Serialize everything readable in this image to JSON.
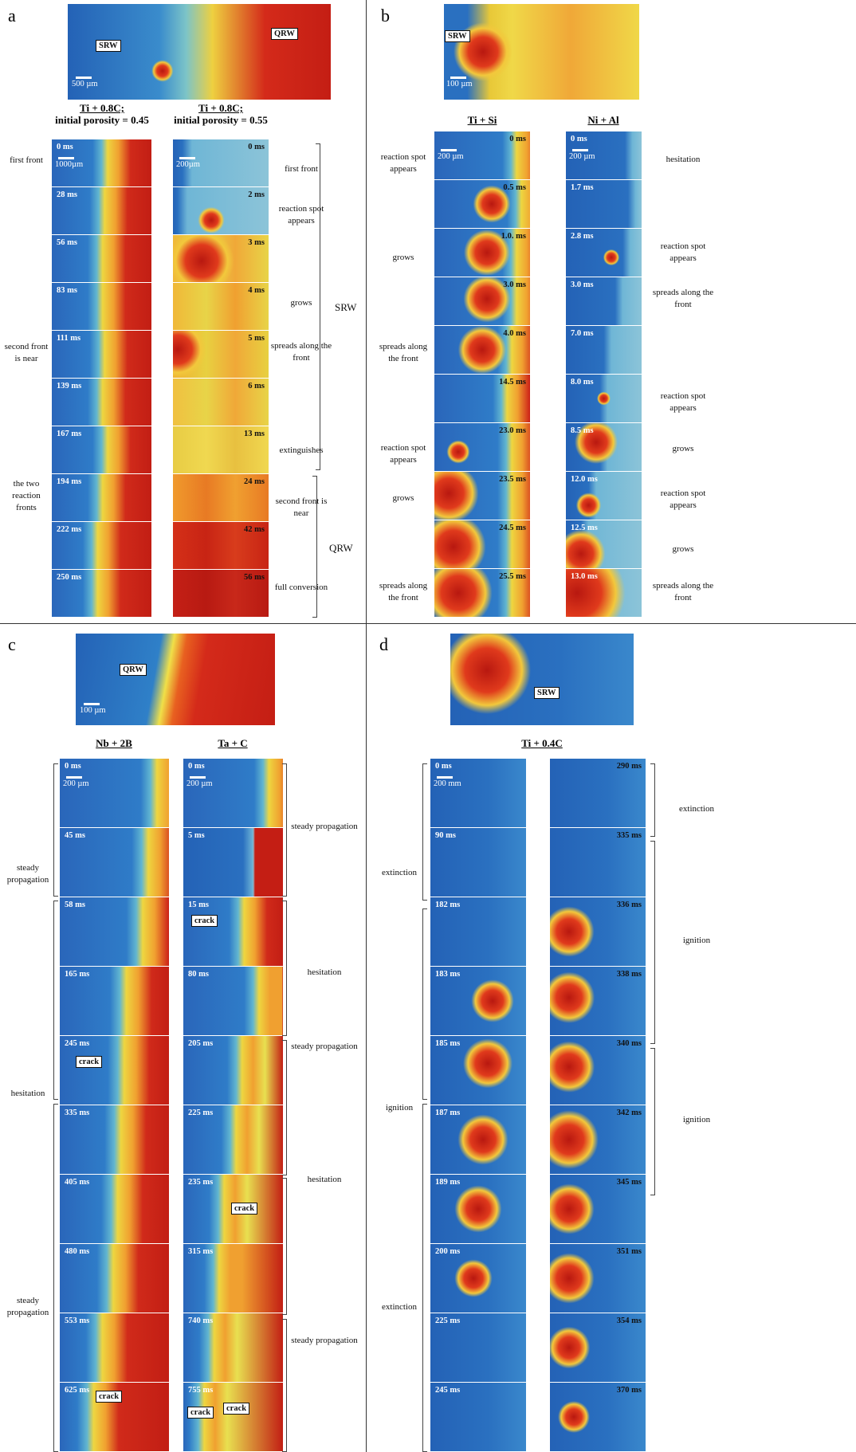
{
  "panels": [
    {
      "letter": "a",
      "overview": {
        "labels": [
          "SRW",
          "QRW"
        ],
        "scale": "500 µm"
      },
      "columns": [
        {
          "header": [
            "Ti + 0.8C;",
            "initial porosity = 0.45"
          ],
          "scale": "1000µm",
          "times": [
            "0 ms",
            "28 ms",
            "56 ms",
            "83 ms",
            "111 ms",
            "139 ms",
            "167 ms",
            "194 ms",
            "222 ms",
            "250 ms"
          ]
        },
        {
          "header": [
            "Ti + 0.8C;",
            "initial porosity = 0.55"
          ],
          "scale": "200µm",
          "times": [
            "0 ms",
            "2 ms",
            "3 ms",
            "4 ms",
            "5 ms",
            "6 ms",
            "13 ms",
            "24 ms",
            "42 ms",
            "56 ms"
          ]
        }
      ],
      "left_notes": [
        "first front",
        "second front is near",
        "the two reaction fronts"
      ],
      "right_notes": [
        "first front",
        "reaction spot appears",
        "grows",
        "spreads along the front",
        "extinguishes",
        "second front is near",
        "full conversion"
      ],
      "brackets": [
        "SRW",
        "QRW"
      ]
    },
    {
      "letter": "b",
      "overview": {
        "labels": [
          "SRW"
        ],
        "scale": "100 µm"
      },
      "columns": [
        {
          "header": [
            "Ti + Si"
          ],
          "scale": "200 µm",
          "times": [
            "0 ms",
            "0.5 ms",
            "1.0. ms",
            "3.0 ms",
            "4.0 ms",
            "14.5 ms",
            "23.0 ms",
            "23.5 ms",
            "24.5 ms",
            "25.5 ms"
          ]
        },
        {
          "header": [
            "Ni + Al"
          ],
          "scale": "200 µm",
          "times": [
            "0 ms",
            "1.7 ms",
            "2.8 ms",
            "3.0 ms",
            "7.0 ms",
            "8.0 ms",
            "8.5 ms",
            "12.0 ms",
            "12.5 ms",
            "13.0 ms"
          ]
        }
      ],
      "left_notes": [
        "reaction spot appears",
        "grows",
        "spreads along the front",
        "reaction spot appears",
        "grows",
        "spreads along the front"
      ],
      "right_notes": [
        "hesitation",
        "reaction spot appears",
        "spreads along the front",
        "reaction spot appears",
        "grows",
        "reaction spot appears",
        "grows",
        "spreads along the front"
      ]
    },
    {
      "letter": "c",
      "overview": {
        "labels": [
          "QRW"
        ],
        "scale": "100 µm"
      },
      "columns": [
        {
          "header": [
            "Nb + 2B"
          ],
          "scale": "200 µm",
          "times": [
            "0 ms",
            "45 ms",
            "58 ms",
            "165 ms",
            "245 ms",
            "335 ms",
            "405 ms",
            "480 ms",
            "553 ms",
            "625 ms"
          ],
          "cracks": [
            "crack",
            "crack"
          ]
        },
        {
          "header": [
            "Ta + C"
          ],
          "scale": "200 µm",
          "times": [
            "0 ms",
            "5 ms",
            "15 ms",
            "80 ms",
            "205 ms",
            "225 ms",
            "235 ms",
            "315 ms",
            "740 ms",
            "755 ms"
          ],
          "cracks": [
            "crack",
            "crack",
            "crack",
            "crack"
          ]
        }
      ],
      "left_notes": [
        "steady propagation",
        "hesitation",
        "steady propagation"
      ],
      "right_notes": [
        "steady propagation",
        "hesitation",
        "steady propagation",
        "hesitation",
        "steady propagation"
      ]
    },
    {
      "letter": "d",
      "overview": {
        "labels": [
          "SRW"
        ]
      },
      "header": "Ti + 0.4C",
      "columns": [
        {
          "scale": "200 mm",
          "times": [
            "0 ms",
            "90 ms",
            "182 ms",
            "183 ms",
            "185 ms",
            "187 ms",
            "189 ms",
            "200 ms",
            "225 ms",
            "245 ms"
          ]
        },
        {
          "times": [
            "290 ms",
            "335 ms",
            "336 ms",
            "338 ms",
            "340 ms",
            "342 ms",
            "345 ms",
            "351 ms",
            "354 ms",
            "370 ms"
          ]
        }
      ],
      "left_notes": [
        "extinction",
        "ignition",
        "extinction"
      ],
      "right_notes": [
        "extinction",
        "ignition",
        "ignition"
      ]
    }
  ]
}
